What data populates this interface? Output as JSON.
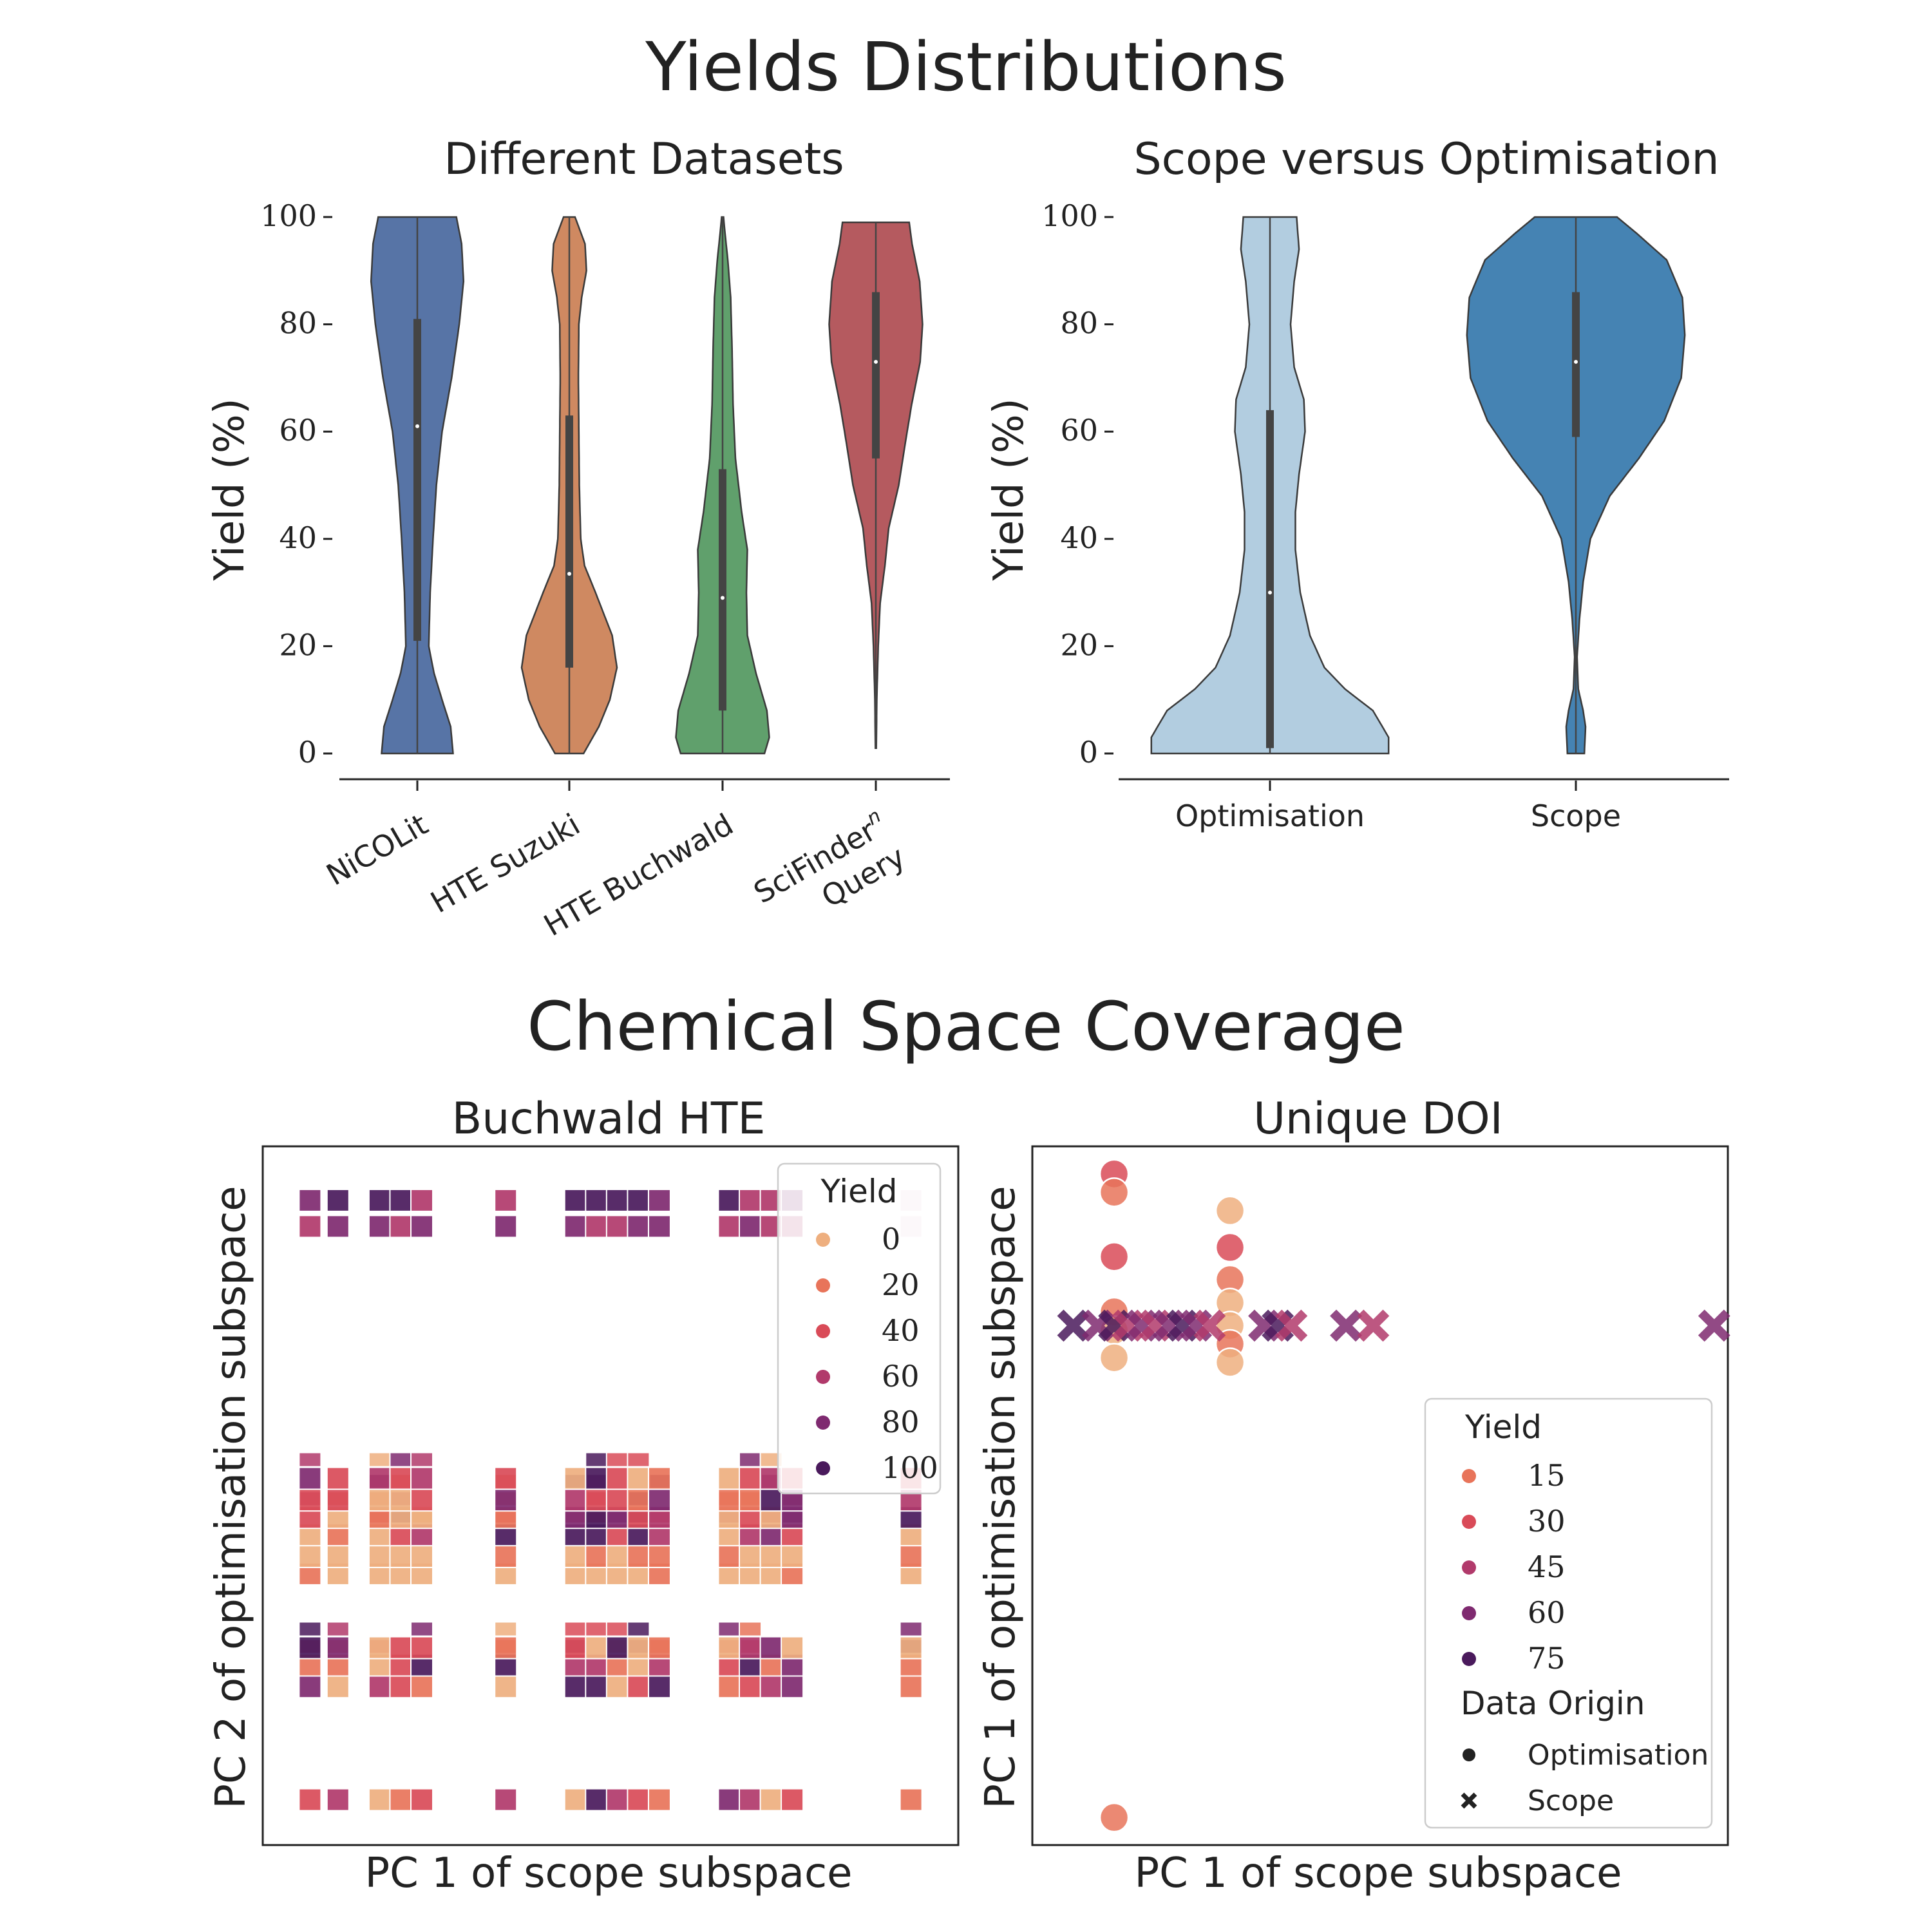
{
  "figure": {
    "top_title": "Yields Distributions",
    "bottom_title": "Chemical Space Coverage"
  },
  "colors": {
    "nicolit": "#5774a6",
    "hte_suzuki": "#cf8961",
    "hte_buchwald": "#60a06c",
    "scifinder": "#b55a5f",
    "optimisation": "#b2cde0",
    "scope": "#4583b3",
    "edge": "#3a3a3a",
    "box": "#444444",
    "axis": "#222222",
    "yield_palette": [
      "#eeaf7f",
      "#e8745a",
      "#d94b58",
      "#b13a6b",
      "#7f2a70",
      "#4a1a5c"
    ]
  },
  "chart_data": [
    {
      "id": "violin_datasets",
      "type": "violin",
      "title": "Different Datasets",
      "ylabel": "Yield (%)",
      "ylim": [
        0,
        100
      ],
      "yticks": [
        0,
        20,
        40,
        60,
        80,
        100
      ],
      "categories": [
        "NiCOLit",
        "HTE Suzuki",
        "HTE Buchwald",
        "SciFinder^n Query"
      ],
      "tick_labels": [
        [
          "NiCOLit"
        ],
        [
          "HTE Suzuki"
        ],
        [
          "HTE Buchwald"
        ],
        [
          "SciFindern",
          "Query"
        ]
      ],
      "series": [
        {
          "name": "NiCOLit",
          "color_key": "nicolit",
          "min": 0,
          "max": 100,
          "q1": 21,
          "median": 61,
          "q3": 81,
          "profile": [
            [
              0,
              0.75
            ],
            [
              5,
              0.7
            ],
            [
              10,
              0.52
            ],
            [
              15,
              0.35
            ],
            [
              20,
              0.24
            ],
            [
              30,
              0.27
            ],
            [
              40,
              0.33
            ],
            [
              50,
              0.4
            ],
            [
              60,
              0.52
            ],
            [
              70,
              0.72
            ],
            [
              80,
              0.88
            ],
            [
              88,
              0.97
            ],
            [
              95,
              0.93
            ],
            [
              100,
              0.82
            ]
          ]
        },
        {
          "name": "HTE Suzuki",
          "color_key": "hte_suzuki",
          "min": 0,
          "max": 100,
          "q1": 16,
          "median": 33.5,
          "q3": 63,
          "profile": [
            [
              0,
              0.3
            ],
            [
              5,
              0.62
            ],
            [
              10,
              0.85
            ],
            [
              16,
              1.0
            ],
            [
              22,
              0.9
            ],
            [
              30,
              0.55
            ],
            [
              35,
              0.32
            ],
            [
              40,
              0.24
            ],
            [
              50,
              0.21
            ],
            [
              60,
              0.2
            ],
            [
              70,
              0.19
            ],
            [
              80,
              0.2
            ],
            [
              85,
              0.26
            ],
            [
              90,
              0.36
            ],
            [
              95,
              0.33
            ],
            [
              100,
              0.12
            ]
          ]
        },
        {
          "name": "HTE Buchwald",
          "color_key": "hte_buchwald",
          "min": 0,
          "max": 100,
          "q1": 8,
          "median": 29,
          "q3": 53,
          "profile": [
            [
              0,
              0.88
            ],
            [
              3,
              0.98
            ],
            [
              8,
              0.93
            ],
            [
              15,
              0.7
            ],
            [
              22,
              0.52
            ],
            [
              30,
              0.5
            ],
            [
              38,
              0.52
            ],
            [
              45,
              0.4
            ],
            [
              55,
              0.27
            ],
            [
              65,
              0.22
            ],
            [
              75,
              0.2
            ],
            [
              85,
              0.17
            ],
            [
              92,
              0.11
            ],
            [
              98,
              0.04
            ],
            [
              100,
              0.02
            ]
          ]
        },
        {
          "name": "SciFinder^n Query",
          "color_key": "scifinder",
          "min": 1,
          "max": 99,
          "q1": 55,
          "median": 73,
          "q3": 86,
          "profile": [
            [
              1,
              0.01
            ],
            [
              10,
              0.02
            ],
            [
              20,
              0.05
            ],
            [
              28,
              0.09
            ],
            [
              35,
              0.19
            ],
            [
              42,
              0.27
            ],
            [
              50,
              0.48
            ],
            [
              58,
              0.62
            ],
            [
              65,
              0.75
            ],
            [
              73,
              0.93
            ],
            [
              80,
              0.98
            ],
            [
              88,
              0.92
            ],
            [
              95,
              0.76
            ],
            [
              99,
              0.7
            ]
          ]
        }
      ]
    },
    {
      "id": "violin_scope_vs_opt",
      "type": "violin",
      "title": "Scope versus Optimisation",
      "ylabel": "Yield (%)",
      "ylim": [
        0,
        100
      ],
      "yticks": [
        0,
        20,
        40,
        60,
        80,
        100
      ],
      "categories": [
        "Optimisation",
        "Scope"
      ],
      "tick_labels": [
        [
          "Optimisation"
        ],
        [
          "Scope"
        ]
      ],
      "series": [
        {
          "name": "Optimisation",
          "color_key": "optimisation",
          "min": 0,
          "max": 100,
          "q1": 1,
          "median": 30,
          "q3": 64,
          "profile": [
            [
              0,
              0.98
            ],
            [
              3,
              0.98
            ],
            [
              8,
              0.85
            ],
            [
              12,
              0.62
            ],
            [
              16,
              0.45
            ],
            [
              22,
              0.33
            ],
            [
              30,
              0.25
            ],
            [
              38,
              0.21
            ],
            [
              45,
              0.21
            ],
            [
              52,
              0.24
            ],
            [
              60,
              0.29
            ],
            [
              66,
              0.28
            ],
            [
              72,
              0.2
            ],
            [
              80,
              0.17
            ],
            [
              88,
              0.2
            ],
            [
              94,
              0.24
            ],
            [
              100,
              0.22
            ]
          ]
        },
        {
          "name": "Scope",
          "color_key": "scope",
          "min": 0,
          "max": 100,
          "q1": 59,
          "median": 73,
          "q3": 86,
          "profile": [
            [
              0,
              0.07
            ],
            [
              5,
              0.08
            ],
            [
              8,
              0.06
            ],
            [
              12,
              0.02
            ],
            [
              18,
              0.01
            ],
            [
              25,
              0.03
            ],
            [
              32,
              0.06
            ],
            [
              40,
              0.12
            ],
            [
              48,
              0.28
            ],
            [
              55,
              0.52
            ],
            [
              62,
              0.73
            ],
            [
              70,
              0.87
            ],
            [
              78,
              0.9
            ],
            [
              85,
              0.88
            ],
            [
              92,
              0.75
            ],
            [
              97,
              0.5
            ],
            [
              100,
              0.34
            ]
          ]
        }
      ]
    },
    {
      "id": "scatter_buchwald_hte",
      "type": "scatter",
      "title": "Buchwald HTE",
      "xlabel": "PC 1 of scope subspace",
      "ylabel": "PC 2 of optimisation subspace",
      "marker": "square",
      "columns": [
        0.2,
        0.4,
        0.7,
        0.85,
        1.0,
        1.6,
        2.1,
        2.25,
        2.4,
        2.55,
        2.7,
        3.2,
        3.35,
        3.5,
        3.65,
        4.5
      ],
      "rows": [
        0.3,
        1.6,
        1.85,
        2.05,
        2.9,
        3.1,
        3.35,
        3.55,
        3.75,
        4.0,
        6.9,
        7.2
      ],
      "xlim": [
        0,
        4.7
      ],
      "ylim": [
        0,
        7.6
      ],
      "legend": {
        "title": "Yield",
        "labels": [
          "0",
          "20",
          "40",
          "60",
          "80",
          "100"
        ]
      }
    },
    {
      "id": "scatter_unique_doi",
      "type": "scatter",
      "title": "Unique DOI",
      "xlabel": "PC 1 of scope subspace",
      "ylabel": "PC 1 of optimisation subspace",
      "xlim": [
        -0.3,
        4.8
      ],
      "ylim": [
        -0.3,
        7.3
      ],
      "optimisation_points": [
        [
          0.3,
          7.0,
          2
        ],
        [
          0.3,
          6.8,
          1
        ],
        [
          0.3,
          6.1,
          2
        ],
        [
          0.3,
          5.5,
          1
        ],
        [
          0.3,
          5.3,
          0
        ],
        [
          0.3,
          5.0,
          0
        ],
        [
          0.3,
          0.0,
          1
        ],
        [
          1.15,
          6.6,
          0
        ],
        [
          1.15,
          6.2,
          2
        ],
        [
          1.15,
          5.85,
          1
        ],
        [
          1.15,
          5.6,
          0
        ],
        [
          1.15,
          5.35,
          0
        ],
        [
          1.15,
          5.15,
          1
        ],
        [
          1.15,
          4.95,
          0
        ]
      ],
      "scope_points": [
        [
          0.0,
          5.35,
          5
        ],
        [
          0.18,
          5.35,
          4
        ],
        [
          0.3,
          5.35,
          5
        ],
        [
          0.4,
          5.35,
          3
        ],
        [
          0.5,
          5.35,
          4
        ],
        [
          0.6,
          5.35,
          3
        ],
        [
          0.7,
          5.35,
          4
        ],
        [
          0.8,
          5.35,
          5
        ],
        [
          0.9,
          5.35,
          4
        ],
        [
          1.0,
          5.35,
          3
        ],
        [
          1.4,
          5.35,
          4
        ],
        [
          1.5,
          5.35,
          5
        ],
        [
          1.6,
          5.35,
          3
        ],
        [
          2.0,
          5.35,
          4
        ],
        [
          2.2,
          5.35,
          3
        ],
        [
          4.7,
          5.35,
          4
        ]
      ],
      "legend": {
        "title": "Yield",
        "labels": [
          "15",
          "30",
          "45",
          "60",
          "75"
        ],
        "origin_title": "Data Origin",
        "origin_labels": [
          "Optimisation",
          "Scope"
        ]
      }
    }
  ]
}
